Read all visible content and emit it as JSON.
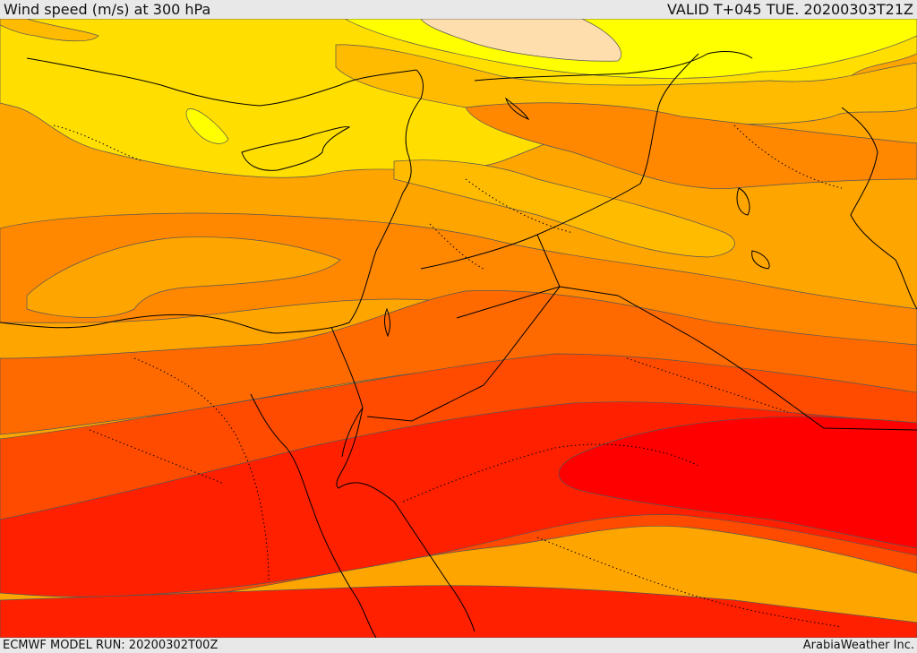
{
  "header": {
    "title": "Wind speed (m/s) at 300 hPa",
    "valid": "VALID T+045 TUE. 20200303T21Z"
  },
  "footer": {
    "model_run": "ECMWF MODEL RUN: 20200302T00Z",
    "credit": "ArabiaWeather Inc."
  },
  "colors": {
    "speed_band_1": "#ffdead",
    "speed_band_2": "#ffff00",
    "speed_band_3": "#ffde00",
    "speed_band_4": "#ffbb00",
    "speed_band_5": "#ffa500",
    "speed_band_6": "#ff8800",
    "speed_band_7": "#ff6a00",
    "speed_band_8": "#ff4b00",
    "speed_band_9": "#ff2000",
    "speed_band_10": "#ff0000",
    "coastline": "#000000",
    "border": "#000000"
  }
}
